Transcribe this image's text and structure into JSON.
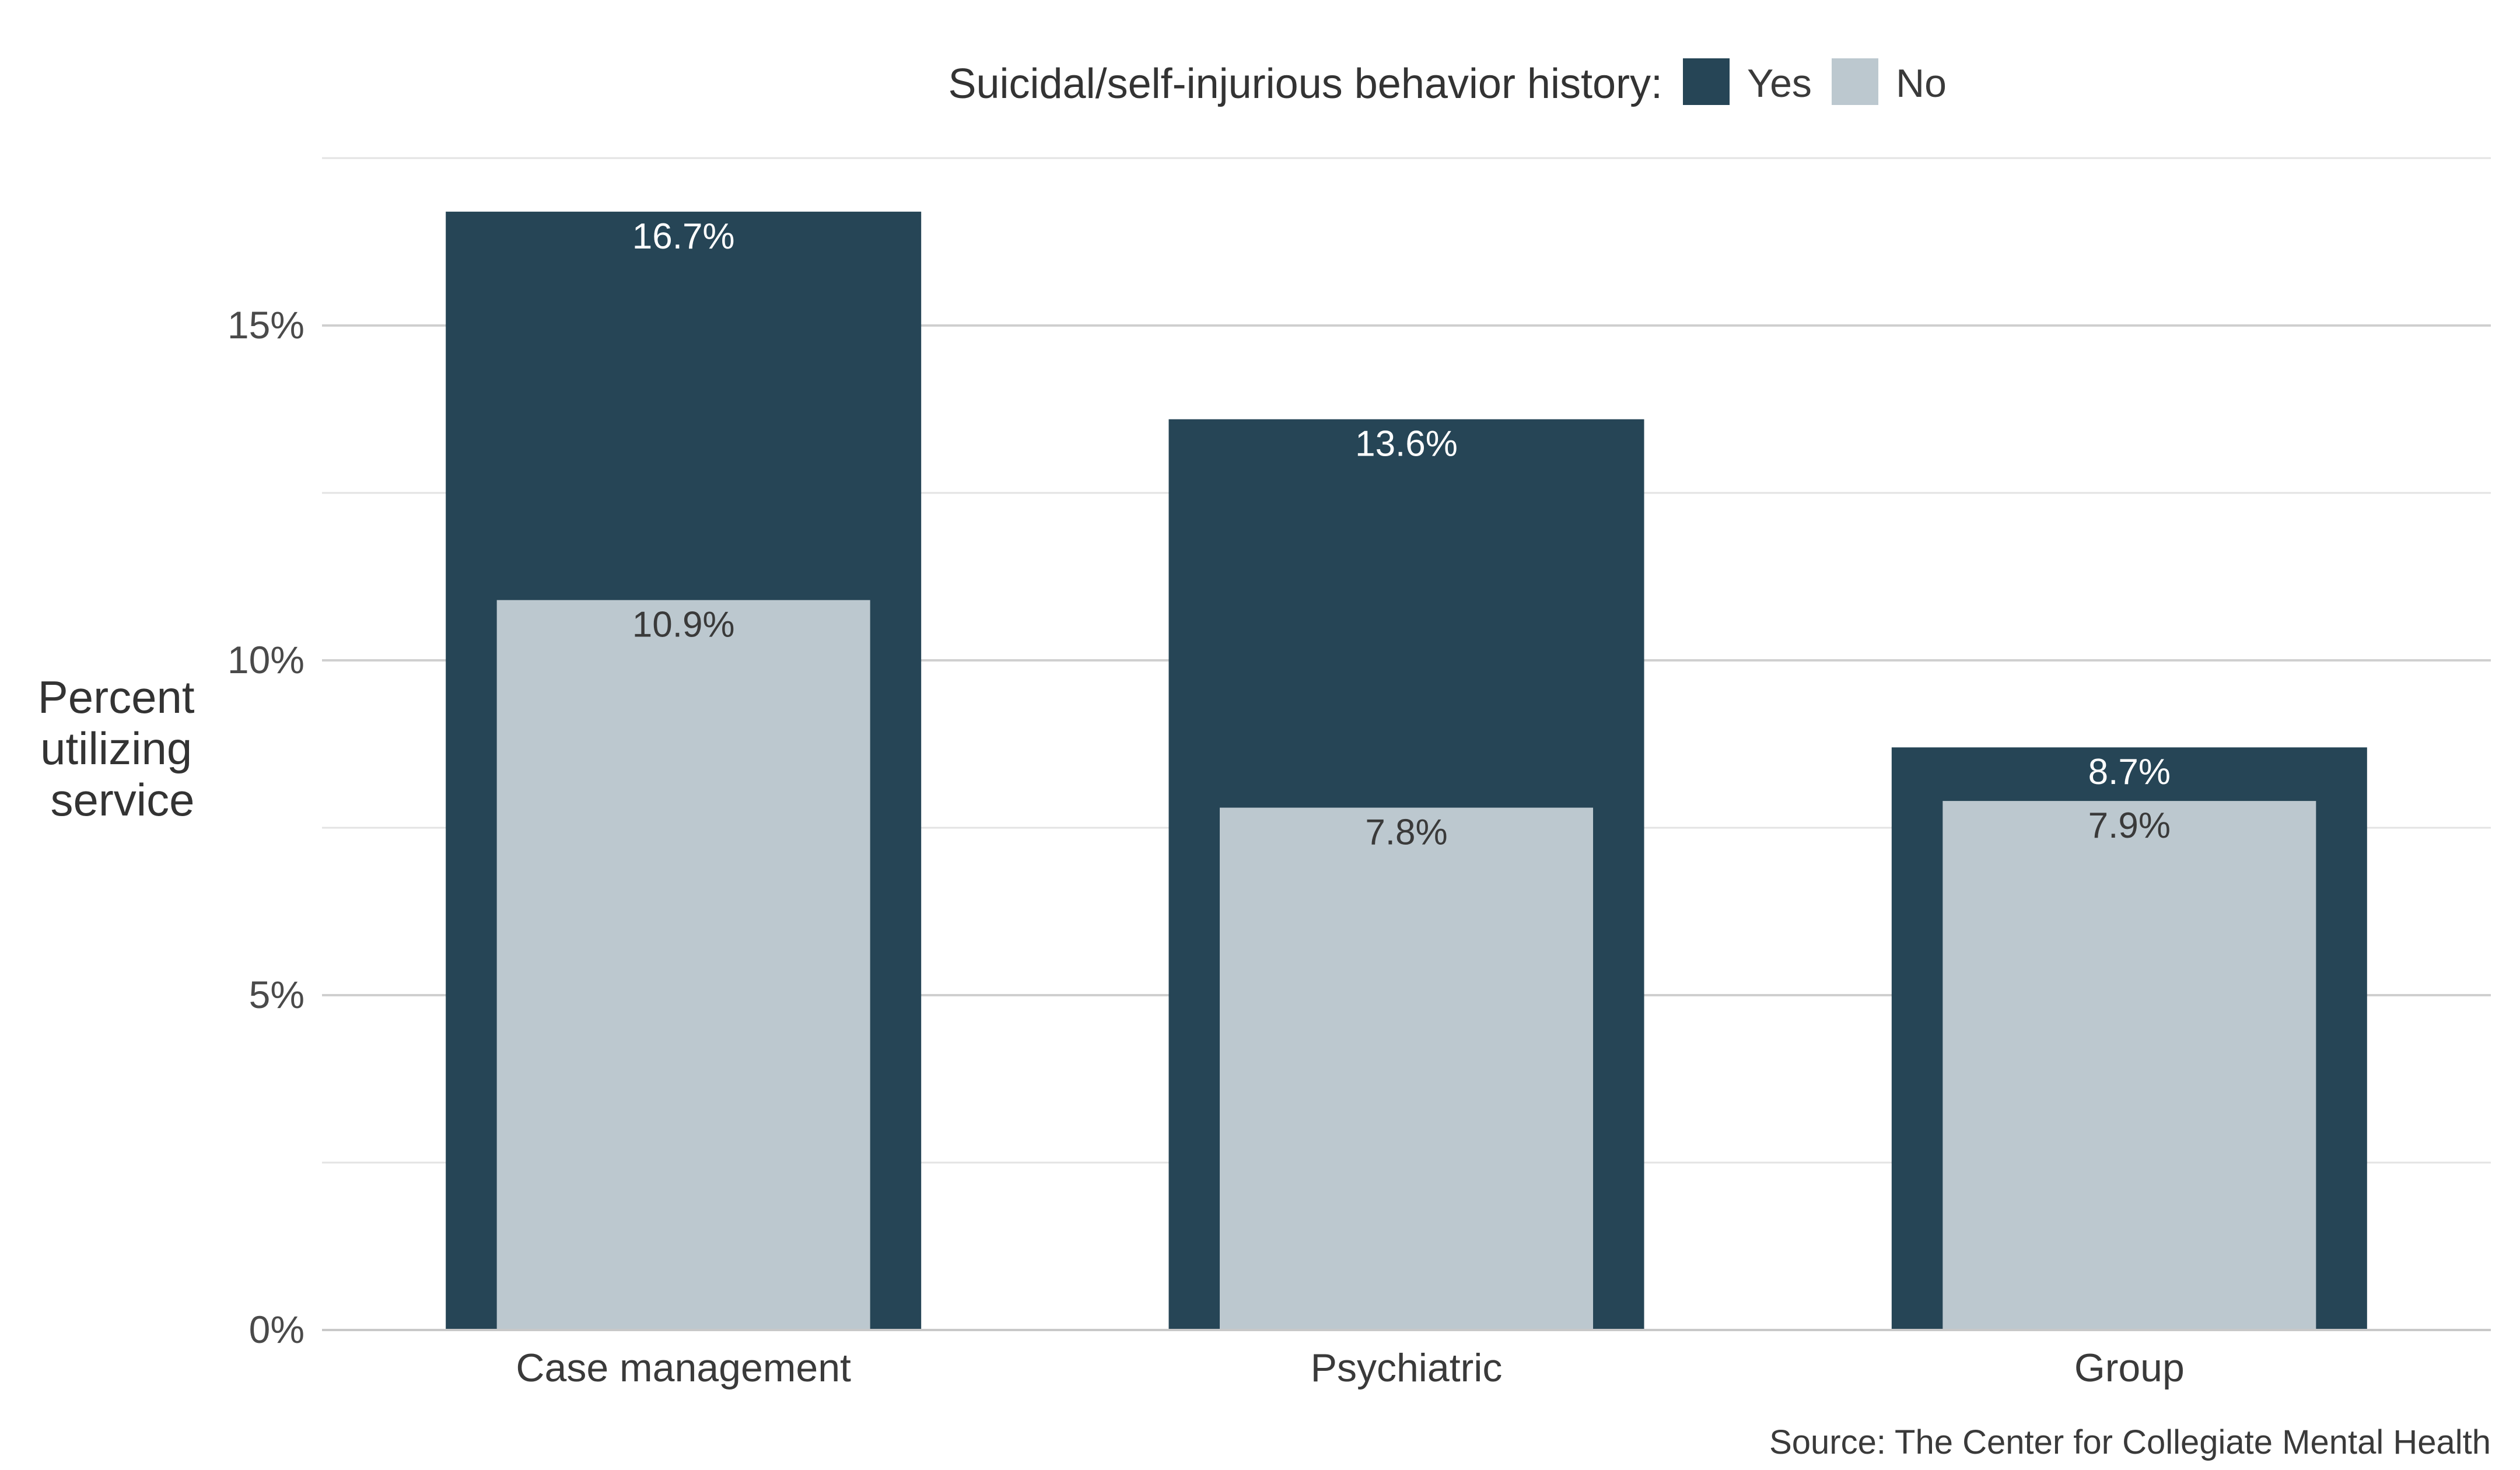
{
  "chart_data": {
    "type": "bar",
    "title": "",
    "legend_title": "Suicidal/self-injurious behavior history:",
    "legend_position": "top",
    "ylabel": "Percent utilizing service",
    "ylabel_lines": [
      "Percent",
      "utilizing",
      "service"
    ],
    "xlabel": "",
    "ylim": [
      0,
      17.5
    ],
    "yticks": [
      0,
      5,
      10,
      15
    ],
    "ytick_labels": [
      "0%",
      "5%",
      "10%",
      "15%"
    ],
    "grid": true,
    "categories": [
      "Case management",
      "Psychiatric",
      "Group"
    ],
    "series": [
      {
        "name": "Yes",
        "color": "#264556",
        "label_color": "#ffffff",
        "values": [
          16.7,
          13.6,
          8.7
        ],
        "labels": [
          "16.7%",
          "13.6%",
          "8.7%"
        ]
      },
      {
        "name": "No",
        "color": "#bcc8cf",
        "label_color": "#3a3a3a",
        "values": [
          10.9,
          7.8,
          7.9
        ],
        "labels": [
          "10.9%",
          "7.8%",
          "7.9%"
        ]
      }
    ],
    "caption": "Source: The Center for Collegiate Mental Health"
  }
}
